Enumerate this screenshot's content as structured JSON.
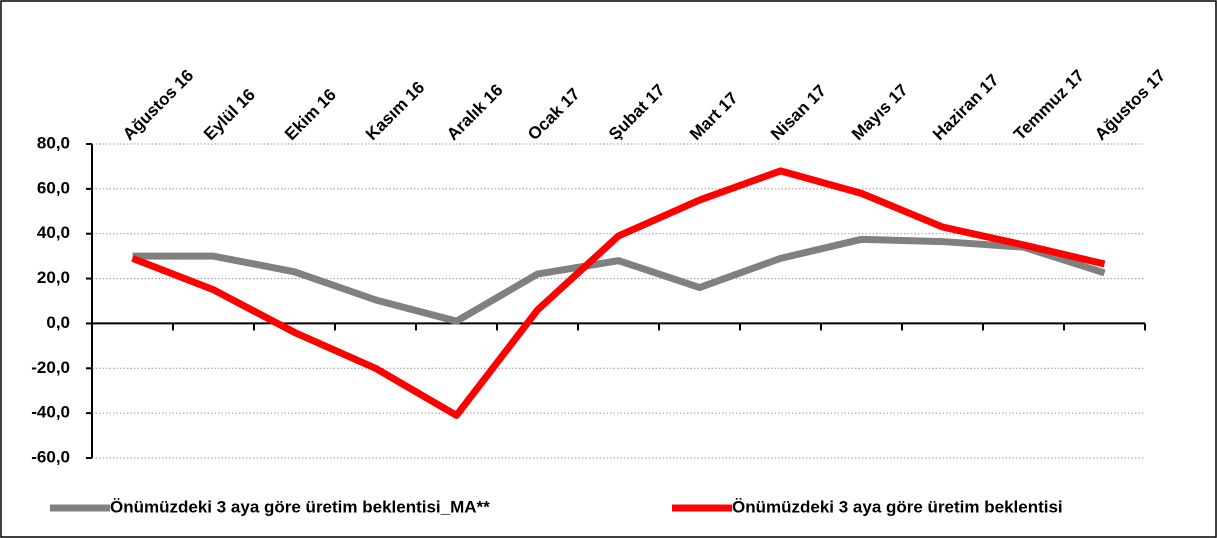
{
  "chart_data": {
    "type": "line",
    "categories": [
      "Ağustos 16",
      "Eylül 16",
      "Ekim 16",
      "Kasım 16",
      "Aralık 16",
      "Ocak 17",
      "Şubat 17",
      "Mart 17",
      "Nisan 17",
      "Mayıs 17",
      "Haziran 17",
      "Temmuz 17",
      "Ağustos 17"
    ],
    "series": [
      {
        "name": "Önümüzdeki 3 aya göre üretim beklentisi_MA**",
        "color": "#808080",
        "values": [
          30,
          30,
          23,
          10.5,
          1,
          22,
          28,
          16,
          29,
          37.5,
          36.5,
          34,
          22.5
        ]
      },
      {
        "name": "Önümüzdeki 3 aya göre üretim beklentisi",
        "color": "#ff0000",
        "values": [
          29,
          15,
          -4,
          -20,
          -41,
          6,
          39,
          55,
          68,
          58,
          43,
          35,
          26.5
        ]
      }
    ],
    "ylim": [
      -60,
      80
    ],
    "yticks": [
      {
        "value": -60,
        "label": "-60,0"
      },
      {
        "value": -40,
        "label": "-40,0"
      },
      {
        "value": -20,
        "label": "-20,0"
      },
      {
        "value": 0,
        "label": "0,0"
      },
      {
        "value": 20,
        "label": "20,0"
      },
      {
        "value": 40,
        "label": "40,0"
      },
      {
        "value": 60,
        "label": "60,0"
      },
      {
        "value": 80,
        "label": "80,0"
      }
    ],
    "grid": true,
    "legend": "bottom"
  }
}
